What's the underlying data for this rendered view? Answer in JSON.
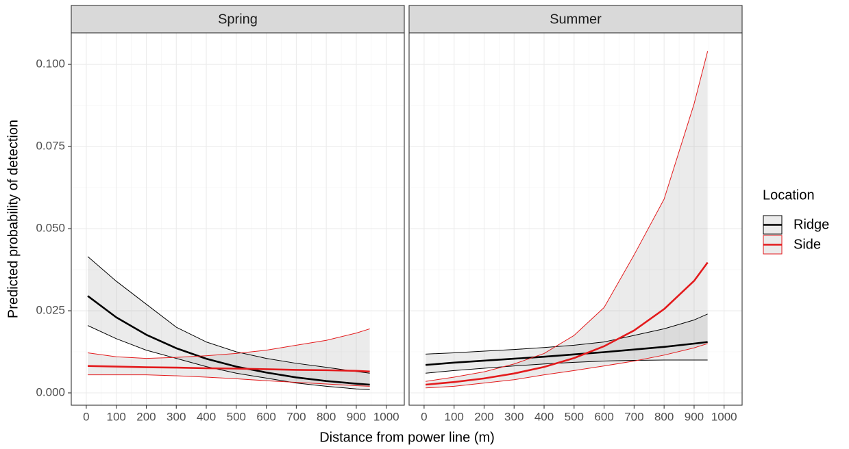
{
  "chart_data": {
    "type": "line",
    "x_label": "Distance from power line (m)",
    "y_label": "Predicted probability of detection",
    "legend_title": "Location",
    "legend_position": "right",
    "grid": true,
    "facets": [
      "Spring",
      "Summer"
    ],
    "xlim": [
      -50,
      1060
    ],
    "ylim": [
      -0.00375,
      0.1096
    ],
    "xticks": [
      0,
      100,
      200,
      300,
      400,
      500,
      600,
      700,
      800,
      900,
      1000
    ],
    "yticks": [
      {
        "value": 0,
        "label": "0.000"
      },
      {
        "value": 0.025,
        "label": "0.025"
      },
      {
        "value": 0.05,
        "label": "0.050"
      },
      {
        "value": 0.075,
        "label": "0.075"
      },
      {
        "value": 0.1,
        "label": "0.100"
      }
    ],
    "x": [
      5,
      100,
      200,
      300,
      400,
      500,
      600,
      700,
      800,
      900,
      945
    ],
    "series": [
      {
        "name": "Ridge",
        "color": "#000000",
        "values": [
          [
            0.0295,
            0.023,
            0.0177,
            0.0136,
            0.0104,
            0.008,
            0.0062,
            0.0047,
            0.0036,
            0.0028,
            0.0025
          ],
          [
            0.0085,
            0.0092,
            0.0098,
            0.0104,
            0.011,
            0.0117,
            0.0124,
            0.0132,
            0.014,
            0.015,
            0.0155
          ]
        ],
        "upper": [
          [
            0.0415,
            0.034,
            0.027,
            0.02,
            0.0155,
            0.0125,
            0.0105,
            0.009,
            0.0078,
            0.0065,
            0.006
          ],
          [
            0.0118,
            0.0122,
            0.0127,
            0.0132,
            0.0138,
            0.0145,
            0.0155,
            0.0175,
            0.0195,
            0.0222,
            0.024
          ]
        ],
        "lower": [
          [
            0.0205,
            0.0165,
            0.013,
            0.0105,
            0.008,
            0.006,
            0.0045,
            0.003,
            0.002,
            0.0012,
            0.001
          ],
          [
            0.006,
            0.0068,
            0.0075,
            0.0082,
            0.0088,
            0.0093,
            0.0097,
            0.0099,
            0.01,
            0.01,
            0.01
          ]
        ]
      },
      {
        "name": "Side",
        "color": "#e31a1c",
        "values": [
          [
            0.0082,
            0.008,
            0.0078,
            0.0077,
            0.0075,
            0.0074,
            0.0072,
            0.007,
            0.0069,
            0.0067,
            0.0065
          ],
          [
            0.0025,
            0.0033,
            0.0044,
            0.0059,
            0.0079,
            0.0106,
            0.0142,
            0.019,
            0.0255,
            0.0341,
            0.0397
          ]
        ],
        "upper": [
          [
            0.0122,
            0.011,
            0.0105,
            0.0108,
            0.0113,
            0.012,
            0.013,
            0.0145,
            0.016,
            0.0182,
            0.0195
          ],
          [
            0.0035,
            0.0048,
            0.0064,
            0.0088,
            0.012,
            0.0175,
            0.026,
            0.042,
            0.059,
            0.088,
            0.104
          ]
        ],
        "lower": [
          [
            0.0055,
            0.0055,
            0.0055,
            0.0052,
            0.0048,
            0.0043,
            0.0037,
            0.0032,
            0.0027,
            0.0022,
            0.002
          ],
          [
            0.0015,
            0.002,
            0.003,
            0.004,
            0.0055,
            0.0068,
            0.0082,
            0.0097,
            0.0115,
            0.0137,
            0.015
          ]
        ]
      }
    ]
  }
}
